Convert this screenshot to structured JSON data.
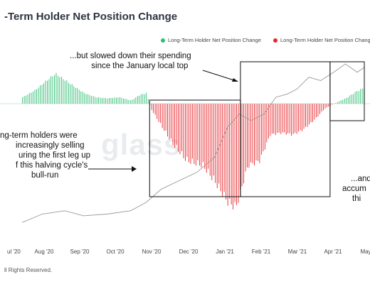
{
  "header": {
    "title": "-Term Holder Net Position Change"
  },
  "legend": [
    {
      "label": "Long-Term Holder Net Position Change",
      "color": "#2ebd73"
    },
    {
      "label": "Long-Term Holder Net Position Change",
      "color": "#e8262b"
    }
  ],
  "watermark": "glass",
  "annotations": {
    "middle": [
      "...but slowed down their spending",
      "since the January local top"
    ],
    "left": [
      "ng-term holders were",
      "increasingly selling",
      "uring the first leg up",
      "f this halving cycle's",
      "bull-run"
    ],
    "right": [
      "...and",
      "accum",
      "thi"
    ]
  },
  "footer": "ll Rights Reserved.",
  "chart_data": {
    "type": "bar",
    "x_ticks": [
      "ul '20",
      "Aug '20",
      "Sep '20",
      "Oct '20",
      "Nov '20",
      "Dec '20",
      "Jan '21",
      "Feb '21",
      "Mar '21",
      "Apr '21",
      "May"
    ],
    "series": [
      {
        "role": "net_position_change",
        "colors": {
          "positive": "#2ebd73",
          "negative": "#e8262b"
        },
        "points": [
          [
            "Jul 15",
            6
          ],
          [
            "Jul 25",
            12
          ],
          [
            "Aug 5",
            22
          ],
          [
            "Aug 12",
            28
          ],
          [
            "Aug 20",
            22
          ],
          [
            "Sep 5",
            10
          ],
          [
            "Sep 15",
            6
          ],
          [
            "Sep 25",
            5
          ],
          [
            "Oct 5",
            6
          ],
          [
            "Oct 15",
            3
          ],
          [
            "Oct 22",
            8
          ],
          [
            "Oct 28",
            10
          ],
          [
            "Nov 1",
            -5
          ],
          [
            "Nov 10",
            -22
          ],
          [
            "Nov 20",
            -40
          ],
          [
            "Dec 1",
            -55
          ],
          [
            "Dec 15",
            -60
          ],
          [
            "Dec 25",
            -75
          ],
          [
            "Jan 5",
            -95
          ],
          [
            "Jan 12",
            -100
          ],
          [
            "Jan 22",
            -60
          ],
          [
            "Feb 1",
            -55
          ],
          [
            "Feb 10",
            -30
          ],
          [
            "Feb 20",
            -28
          ],
          [
            "Mar 1",
            -30
          ],
          [
            "Mar 10",
            -25
          ],
          [
            "Mar 20",
            -15
          ],
          [
            "Mar 28",
            -5
          ],
          [
            "Apr 5",
            0
          ],
          [
            "Apr 15",
            5
          ],
          [
            "Apr 25",
            12
          ],
          [
            "May 1",
            15
          ]
        ]
      },
      {
        "role": "price",
        "color": "#999999",
        "points": [
          [
            "Jul 15",
            5
          ],
          [
            "Aug 1",
            10
          ],
          [
            "Aug 20",
            12
          ],
          [
            "Sep 5",
            9
          ],
          [
            "Sep 25",
            10
          ],
          [
            "Oct 15",
            12
          ],
          [
            "Oct 28",
            17
          ],
          [
            "Nov 10",
            25
          ],
          [
            "Nov 25",
            30
          ],
          [
            "Dec 10",
            35
          ],
          [
            "Dec 25",
            44
          ],
          [
            "Jan 5",
            62
          ],
          [
            "Jan 15",
            70
          ],
          [
            "Jan 25",
            66
          ],
          [
            "Feb 5",
            70
          ],
          [
            "Feb 15",
            80
          ],
          [
            "Feb 25",
            82
          ],
          [
            "Mar 5",
            85
          ],
          [
            "Mar 15",
            92
          ],
          [
            "Mar 25",
            90
          ],
          [
            "Apr 5",
            95
          ],
          [
            "Apr 15",
            100
          ],
          [
            "Apr 25",
            95
          ],
          [
            "May 1",
            98
          ]
        ]
      }
    ],
    "highlight_boxes": [
      {
        "from": "Oct 31",
        "to": "Jan 16",
        "range": [
          -100,
          0
        ]
      },
      {
        "from": "Jan 16",
        "to": "Apr 2",
        "range": [
          0,
          100
        ]
      },
      {
        "from": "Apr 2",
        "to": "May 1",
        "range": [
          0,
          100
        ]
      }
    ]
  }
}
